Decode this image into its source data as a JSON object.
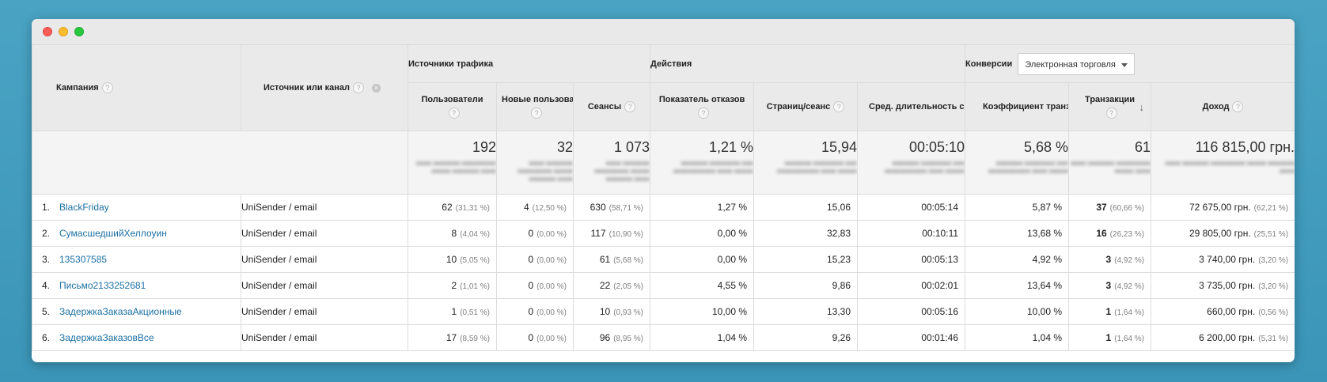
{
  "headers": {
    "campaign": "Кампания",
    "source": "Источник или канал",
    "group_traffic": "Источники трафика",
    "group_actions": "Действия",
    "group_conversions": "Конверсии",
    "conversion_dropdown": "Электронная торговля",
    "users": "Пользователи",
    "new_users": "Новые пользователи",
    "sessions": "Сеансы",
    "bounce_rate": "Показатель отказов",
    "pages_per_session": "Страниц/сеанс",
    "avg_session_duration": "Сред. длительность сеанса",
    "conversion_rate": "Коэффициент транзакций",
    "transactions": "Транзакции",
    "revenue": "Доход"
  },
  "totals": {
    "users": "192",
    "new_users": "32",
    "sessions": "1 073",
    "bounce_rate": "1,21 %",
    "pages_per_session": "15,94",
    "avg_session_duration": "00:05:10",
    "conversion_rate": "5,68 %",
    "transactions": "61",
    "revenue": "116 815,00 грн."
  },
  "rows": [
    {
      "rank": "1.",
      "campaign": "BlackFriday",
      "source": "UniSender / email",
      "users": "62",
      "users_pct": "(31,31 %)",
      "new_users": "4",
      "new_users_pct": "(12,50 %)",
      "sessions": "630",
      "sessions_pct": "(58,71 %)",
      "bounce_rate": "1,27 %",
      "pages": "15,06",
      "duration": "00:05:14",
      "conv_rate": "5,87 %",
      "transactions": "37",
      "transactions_pct": "(60,66 %)",
      "revenue": "72 675,00 грн.",
      "revenue_pct": "(62,21 %)"
    },
    {
      "rank": "2.",
      "campaign": "СумасшедшийХеллоуин",
      "source": "UniSender / email",
      "users": "8",
      "users_pct": "(4,04 %)",
      "new_users": "0",
      "new_users_pct": "(0,00 %)",
      "sessions": "117",
      "sessions_pct": "(10,90 %)",
      "bounce_rate": "0,00 %",
      "pages": "32,83",
      "duration": "00:10:11",
      "conv_rate": "13,68 %",
      "transactions": "16",
      "transactions_pct": "(26,23 %)",
      "revenue": "29 805,00 грн.",
      "revenue_pct": "(25,51 %)"
    },
    {
      "rank": "3.",
      "campaign": "135307585",
      "source": "UniSender / email",
      "users": "10",
      "users_pct": "(5,05 %)",
      "new_users": "0",
      "new_users_pct": "(0,00 %)",
      "sessions": "61",
      "sessions_pct": "(5,68 %)",
      "bounce_rate": "0,00 %",
      "pages": "15,23",
      "duration": "00:05:13",
      "conv_rate": "4,92 %",
      "transactions": "3",
      "transactions_pct": "(4,92 %)",
      "revenue": "3 740,00 грн.",
      "revenue_pct": "(3,20 %)"
    },
    {
      "rank": "4.",
      "campaign": "Письмо2133252681",
      "source": "UniSender / email",
      "users": "2",
      "users_pct": "(1,01 %)",
      "new_users": "0",
      "new_users_pct": "(0,00 %)",
      "sessions": "22",
      "sessions_pct": "(2,05 %)",
      "bounce_rate": "4,55 %",
      "pages": "9,86",
      "duration": "00:02:01",
      "conv_rate": "13,64 %",
      "transactions": "3",
      "transactions_pct": "(4,92 %)",
      "revenue": "3 735,00 грн.",
      "revenue_pct": "(3,20 %)"
    },
    {
      "rank": "5.",
      "campaign": "ЗадержкаЗаказаАкционные",
      "source": "UniSender / email",
      "users": "1",
      "users_pct": "(0,51 %)",
      "new_users": "0",
      "new_users_pct": "(0,00 %)",
      "sessions": "10",
      "sessions_pct": "(0,93 %)",
      "bounce_rate": "10,00 %",
      "pages": "13,30",
      "duration": "00:05:16",
      "conv_rate": "10,00 %",
      "transactions": "1",
      "transactions_pct": "(1,64 %)",
      "revenue": "660,00 грн.",
      "revenue_pct": "(0,56 %)"
    },
    {
      "rank": "6.",
      "campaign": "ЗадержкаЗаказовВсе",
      "source": "UniSender / email",
      "users": "17",
      "users_pct": "(8,59 %)",
      "new_users": "0",
      "new_users_pct": "(0,00 %)",
      "sessions": "96",
      "sessions_pct": "(8,95 %)",
      "bounce_rate": "1,04 %",
      "pages": "9,26",
      "duration": "00:01:46",
      "conv_rate": "1,04 %",
      "transactions": "1",
      "transactions_pct": "(1,64 %)",
      "revenue": "6 200,00 грн.",
      "revenue_pct": "(5,31 %)"
    }
  ],
  "icons": {
    "help": "?",
    "remove": "×",
    "sort": "↓"
  }
}
